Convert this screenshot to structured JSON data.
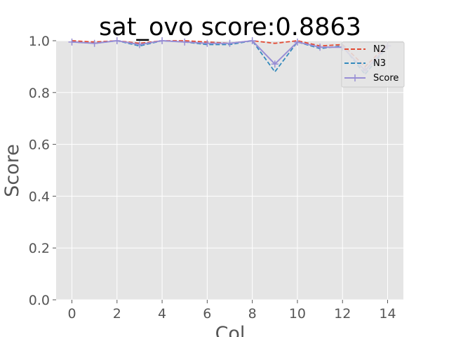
{
  "chart_data": {
    "type": "line",
    "title": "sat_ovo score:0.8863",
    "xlabel": "Col",
    "ylabel": "Score",
    "xlim": [
      -0.7,
      14.7
    ],
    "ylim": [
      0,
      1.0
    ],
    "xticks": [
      0,
      2,
      4,
      6,
      8,
      10,
      12,
      14
    ],
    "yticks": [
      0.0,
      0.2,
      0.4,
      0.6,
      0.8,
      1.0
    ],
    "xtick_labels": [
      "0",
      "2",
      "4",
      "6",
      "8",
      "10",
      "12",
      "14"
    ],
    "ytick_labels": [
      "0.0",
      "0.2",
      "0.4",
      "0.6",
      "0.8",
      "1.0"
    ],
    "grid": true,
    "legend_position": "top-right",
    "x": [
      0,
      1,
      2,
      3,
      4,
      5,
      6,
      7,
      8,
      9,
      10,
      11,
      12,
      13,
      14
    ],
    "series": [
      {
        "name": "N2",
        "color": "#E24A33",
        "dash": "dashed",
        "marker": "none",
        "values": [
          1.0,
          0.995,
          1.0,
          0.99,
          1.0,
          1.0,
          0.995,
          0.99,
          1.0,
          0.99,
          1.0,
          0.98,
          0.985,
          0.9,
          0.985
        ]
      },
      {
        "name": "N3",
        "color": "#348ABD",
        "dash": "dashed",
        "marker": "none",
        "values": [
          0.995,
          0.99,
          1.0,
          0.98,
          1.0,
          0.995,
          0.985,
          0.985,
          1.0,
          0.88,
          0.995,
          0.97,
          0.98,
          0.87,
          0.98
        ]
      },
      {
        "name": "Score",
        "color": "#988ED5",
        "dash": "solid",
        "marker": "plus",
        "values": [
          0.995,
          0.99,
          1.0,
          0.985,
          1.0,
          0.995,
          0.99,
          0.99,
          1.0,
          0.91,
          0.995,
          0.975,
          0.975,
          0.885,
          0.98
        ]
      }
    ]
  }
}
